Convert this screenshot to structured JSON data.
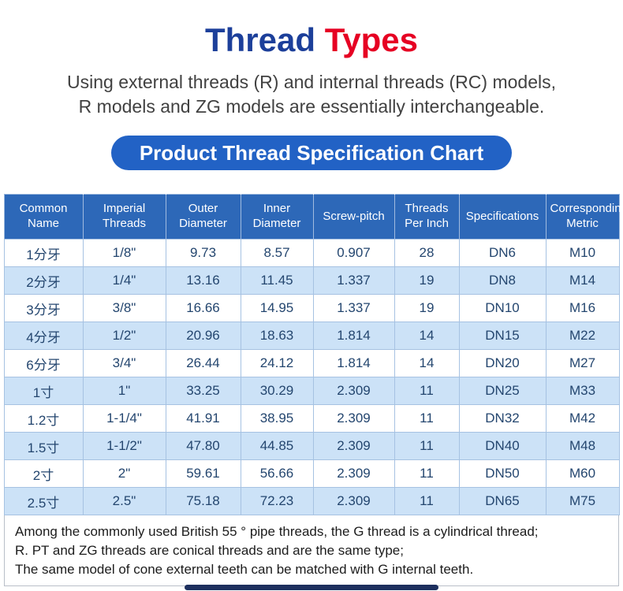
{
  "title": {
    "word1": "Thread",
    "word2": "Types"
  },
  "subtitle": {
    "line1": "Using external threads (R) and internal threads (RC) models,",
    "line2": "R models and ZG models are essentially interchangeable."
  },
  "banner": {
    "label": "Product Thread Specification Chart"
  },
  "table": {
    "headers": [
      "Common Name",
      "Imperial Threads",
      "Outer Diameter",
      "Inner Diameter",
      "Screw-pitch",
      "Threads Per Inch",
      "Specifications",
      "Corresponding Metric"
    ],
    "rows": [
      [
        "1分牙",
        "1/8\"",
        "9.73",
        "8.57",
        "0.907",
        "28",
        "DN6",
        "M10"
      ],
      [
        "2分牙",
        "1/4\"",
        "13.16",
        "11.45",
        "1.337",
        "19",
        "DN8",
        "M14"
      ],
      [
        "3分牙",
        "3/8\"",
        "16.66",
        "14.95",
        "1.337",
        "19",
        "DN10",
        "M16"
      ],
      [
        "4分牙",
        "1/2\"",
        "20.96",
        "18.63",
        "1.814",
        "14",
        "DN15",
        "M22"
      ],
      [
        "6分牙",
        "3/4\"",
        "26.44",
        "24.12",
        "1.814",
        "14",
        "DN20",
        "M27"
      ],
      [
        "1寸",
        "1\"",
        "33.25",
        "30.29",
        "2.309",
        "11",
        "DN25",
        "M33"
      ],
      [
        "1.2寸",
        "1-1/4\"",
        "41.91",
        "38.95",
        "2.309",
        "11",
        "DN32",
        "M42"
      ],
      [
        "1.5寸",
        "1-1/2\"",
        "47.80",
        "44.85",
        "2.309",
        "11",
        "DN40",
        "M48"
      ],
      [
        "2寸",
        "2\"",
        "59.61",
        "56.66",
        "2.309",
        "11",
        "DN50",
        "M60"
      ],
      [
        "2.5寸",
        "2.5\"",
        "75.18",
        "72.23",
        "2.309",
        "11",
        "DN65",
        "M75"
      ]
    ]
  },
  "notes": [
    "Among the commonly used British 55 ° pipe threads, the G thread is a cylindrical thread;",
    "R. PT and ZG threads are conical threads and are the same type;",
    "The same model of cone external teeth can be matched with G internal teeth."
  ],
  "colors": {
    "title_blue": "#1c3f9a",
    "title_red": "#e60023",
    "banner_bg": "#2262c5",
    "header_bg": "#2d68b8",
    "row_alt_bg": "#cce2f7",
    "cell_text": "#24466f",
    "bottom_bar": "#1d2f5e"
  }
}
